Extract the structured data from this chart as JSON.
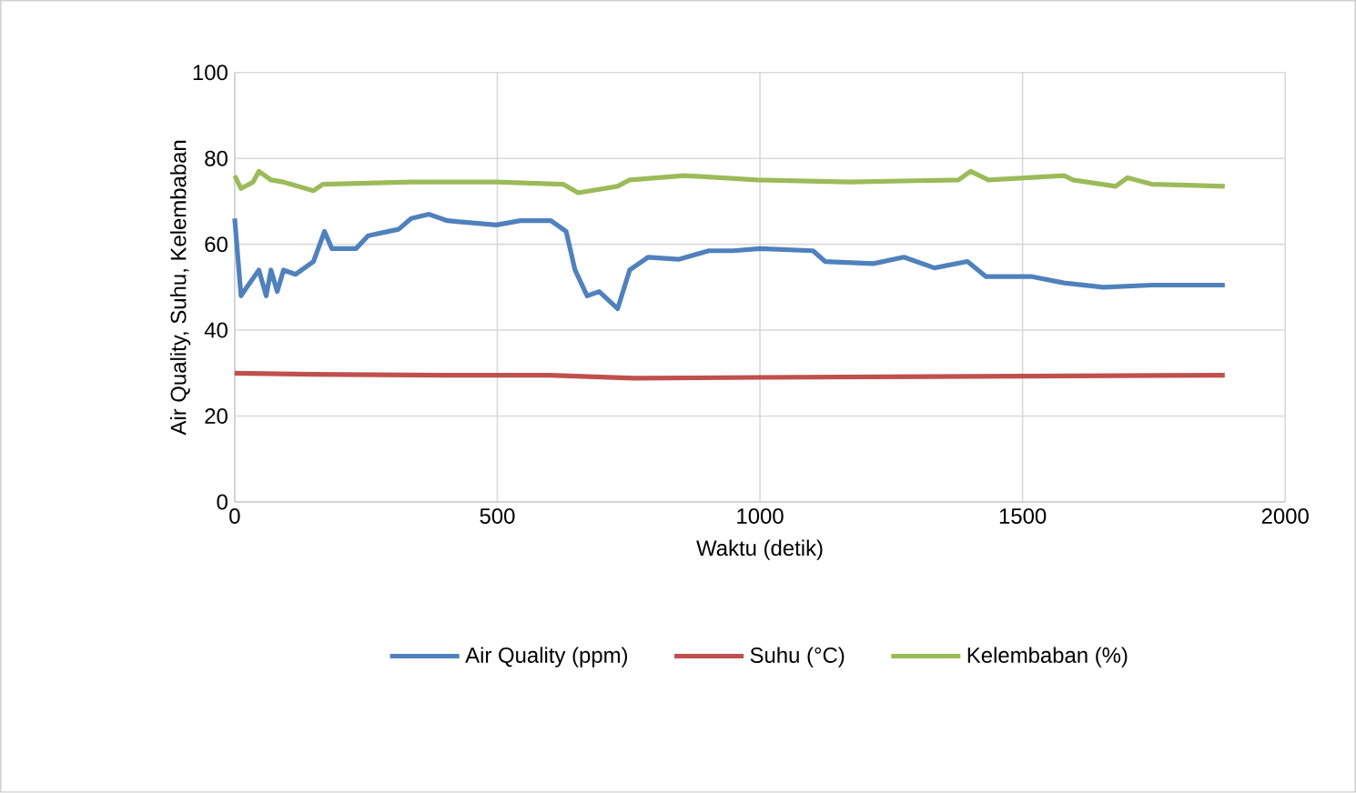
{
  "chart_data": {
    "type": "line",
    "xlabel": "Waktu (detik)",
    "ylabel": "Air Quality, Suhu, Kelembaban",
    "xlim": [
      0,
      2000
    ],
    "xticks": [
      0,
      500,
      1000,
      1500,
      2000
    ],
    "ylim": [
      0,
      100
    ],
    "yticks": [
      0,
      20,
      40,
      60,
      80,
      100
    ],
    "grid": true,
    "legend": "bottom",
    "marker": "none",
    "line_style": "solid",
    "series": [
      {
        "name": "Air Quality (ppm)",
        "color": "#4f81bd",
        "x": [
          0,
          12,
          23,
          46,
          60,
          69,
          81,
          93,
          116,
          150,
          171,
          185,
          231,
          254,
          312,
          336,
          370,
          405,
          498,
          544,
          602,
          631,
          648,
          671,
          694,
          729,
          752,
          787,
          845,
          903,
          949,
          1000,
          1101,
          1124,
          1216,
          1274,
          1332,
          1395,
          1430,
          1516,
          1579,
          1654,
          1746,
          1885
        ],
        "values": [
          66,
          48,
          50,
          54,
          48,
          54,
          49,
          54,
          53,
          56,
          63,
          59,
          59,
          62,
          63.5,
          66,
          67,
          65.5,
          64.5,
          65.5,
          65.5,
          63,
          54,
          48,
          49,
          45,
          54,
          57,
          56.5,
          58.5,
          58.5,
          59,
          58.5,
          56,
          55.5,
          57,
          54.5,
          56,
          52.5,
          52.5,
          51,
          50,
          50.5,
          50.5
        ]
      },
      {
        "name": "Suhu (°C)",
        "color": "#c0504d",
        "x": [
          0,
          150,
          400,
          600,
          760,
          1000,
          1500,
          1885
        ],
        "values": [
          30,
          29.7,
          29.5,
          29.5,
          28.8,
          29,
          29.3,
          29.5
        ]
      },
      {
        "name": "Kelembaban (%)",
        "color": "#9bbb59",
        "x": [
          0,
          12,
          35,
          46,
          69,
          93,
          150,
          168,
          336,
          498,
          625,
          654,
          729,
          752,
          856,
          995,
          1170,
          1378,
          1401,
          1435,
          1579,
          1596,
          1677,
          1700,
          1746,
          1885
        ],
        "values": [
          76,
          73,
          74.5,
          77,
          75,
          74.5,
          72.5,
          74,
          74.5,
          74.5,
          74,
          72,
          73.5,
          75,
          76,
          75,
          74.5,
          75,
          77,
          75,
          76,
          75,
          73.5,
          75.5,
          74,
          73.5
        ]
      }
    ]
  }
}
